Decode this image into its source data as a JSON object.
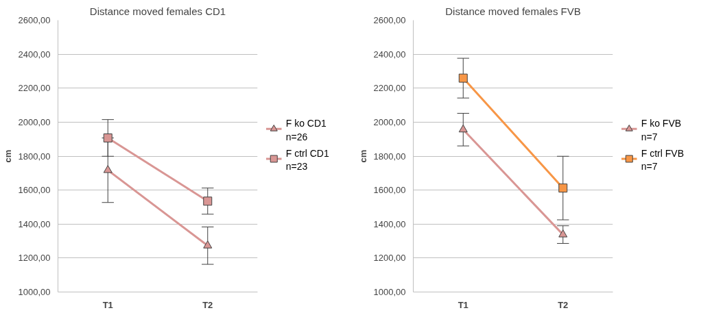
{
  "chart_data": [
    {
      "type": "line",
      "title": "Distance moved females CD1",
      "ylabel": "cm",
      "categories": [
        "T1",
        "T2"
      ],
      "ylim": [
        1000,
        2600
      ],
      "yticks": [
        {
          "value": 1000,
          "label": "1000,00"
        },
        {
          "value": 1200,
          "label": "1200,00"
        },
        {
          "value": 1400,
          "label": "1400,00"
        },
        {
          "value": 1600,
          "label": "1600,00"
        },
        {
          "value": 1800,
          "label": "1800,00"
        },
        {
          "value": 2000,
          "label": "2000,00"
        },
        {
          "value": 2200,
          "label": "2200,00"
        },
        {
          "value": 2400,
          "label": "2400,00"
        },
        {
          "value": 2600,
          "label": "2600,00"
        }
      ],
      "grid": "y",
      "legend": "right",
      "series": [
        {
          "name": "F ko CD1\nn=26",
          "color": "#d99694",
          "marker": "triangle",
          "values": [
            1717,
            1273
          ],
          "errors": [
            190,
            110
          ]
        },
        {
          "name": "F ctrl CD1\nn=23",
          "color": "#d99694",
          "marker": "square",
          "values": [
            1907,
            1535
          ],
          "errors": [
            108,
            77
          ]
        }
      ]
    },
    {
      "type": "line",
      "title": "Distance moved females FVB",
      "ylabel": "cm",
      "categories": [
        "T1",
        "T2"
      ],
      "ylim": [
        1000,
        2600
      ],
      "yticks": [
        {
          "value": 1000,
          "label": "1000,00"
        },
        {
          "value": 1200,
          "label": "1200,00"
        },
        {
          "value": 1400,
          "label": "1400,00"
        },
        {
          "value": 1600,
          "label": "1600,00"
        },
        {
          "value": 1800,
          "label": "1800,00"
        },
        {
          "value": 2000,
          "label": "2000,00"
        },
        {
          "value": 2200,
          "label": "2200,00"
        },
        {
          "value": 2400,
          "label": "2400,00"
        },
        {
          "value": 2600,
          "label": "2600,00"
        }
      ],
      "grid": "y",
      "legend": "right",
      "series": [
        {
          "name": "F ko FVB\nn=7",
          "color": "#d99694",
          "marker": "triangle",
          "values": [
            1956,
            1338
          ],
          "errors": [
            96,
            52
          ]
        },
        {
          "name": "F ctrl FVB\nn=7",
          "color": "#f79646",
          "marker": "square",
          "values": [
            2259,
            1612
          ],
          "errors": [
            117,
            187
          ]
        }
      ]
    }
  ]
}
